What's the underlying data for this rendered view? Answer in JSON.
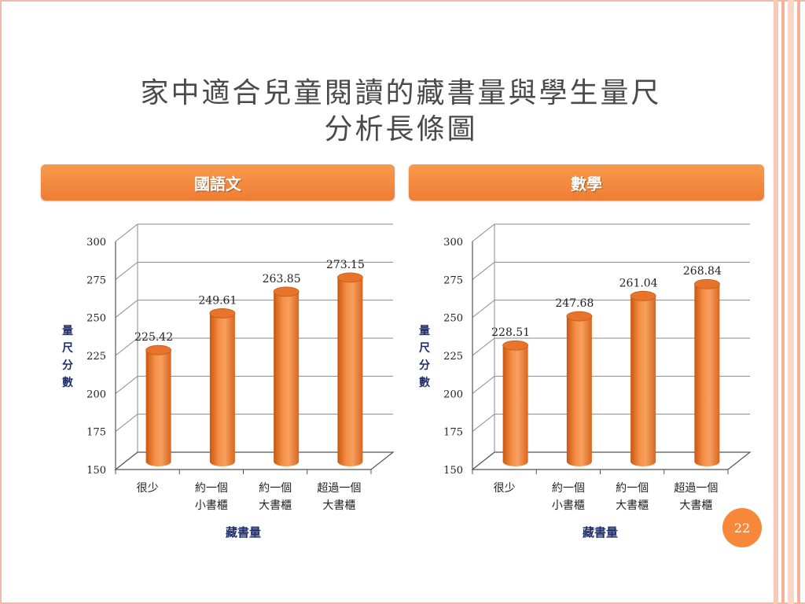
{
  "slide": {
    "title_line1": "家中適合兒童閱讀的藏書量與學生量尺",
    "title_line2": "分析長條圖",
    "page_number": "22",
    "accent_color": "#ef7d32",
    "bar_color": "#f08030"
  },
  "panels": [
    {
      "header": "國語文"
    },
    {
      "header": "數學"
    }
  ],
  "chart_data": [
    {
      "type": "bar",
      "categories": [
        [
          "很少"
        ],
        [
          "約一個",
          "小書櫃"
        ],
        [
          "約一個",
          "大書櫃"
        ],
        [
          "超過一個",
          "大書櫃"
        ]
      ],
      "values": [
        225.42,
        249.61,
        263.85,
        273.15
      ],
      "value_labels": [
        "225.42",
        "249.61",
        "263.85",
        "273.15"
      ],
      "xlabel": "藏書量",
      "ylabel": "量尺分數",
      "ylim": [
        150,
        300
      ],
      "yticks": [
        150,
        175,
        200,
        225,
        250,
        275,
        300
      ],
      "grid": true
    },
    {
      "type": "bar",
      "categories": [
        [
          "很少"
        ],
        [
          "約一個",
          "小書櫃"
        ],
        [
          "約一個",
          "大書櫃"
        ],
        [
          "超過一個",
          "大書櫃"
        ]
      ],
      "values": [
        228.51,
        247.68,
        261.04,
        268.84
      ],
      "value_labels": [
        "228.51",
        "247.68",
        "261.04",
        "268.84"
      ],
      "xlabel": "藏書量",
      "ylabel": "量尺分數",
      "ylim": [
        150,
        300
      ],
      "yticks": [
        150,
        175,
        200,
        225,
        250,
        275,
        300
      ],
      "grid": true
    }
  ]
}
